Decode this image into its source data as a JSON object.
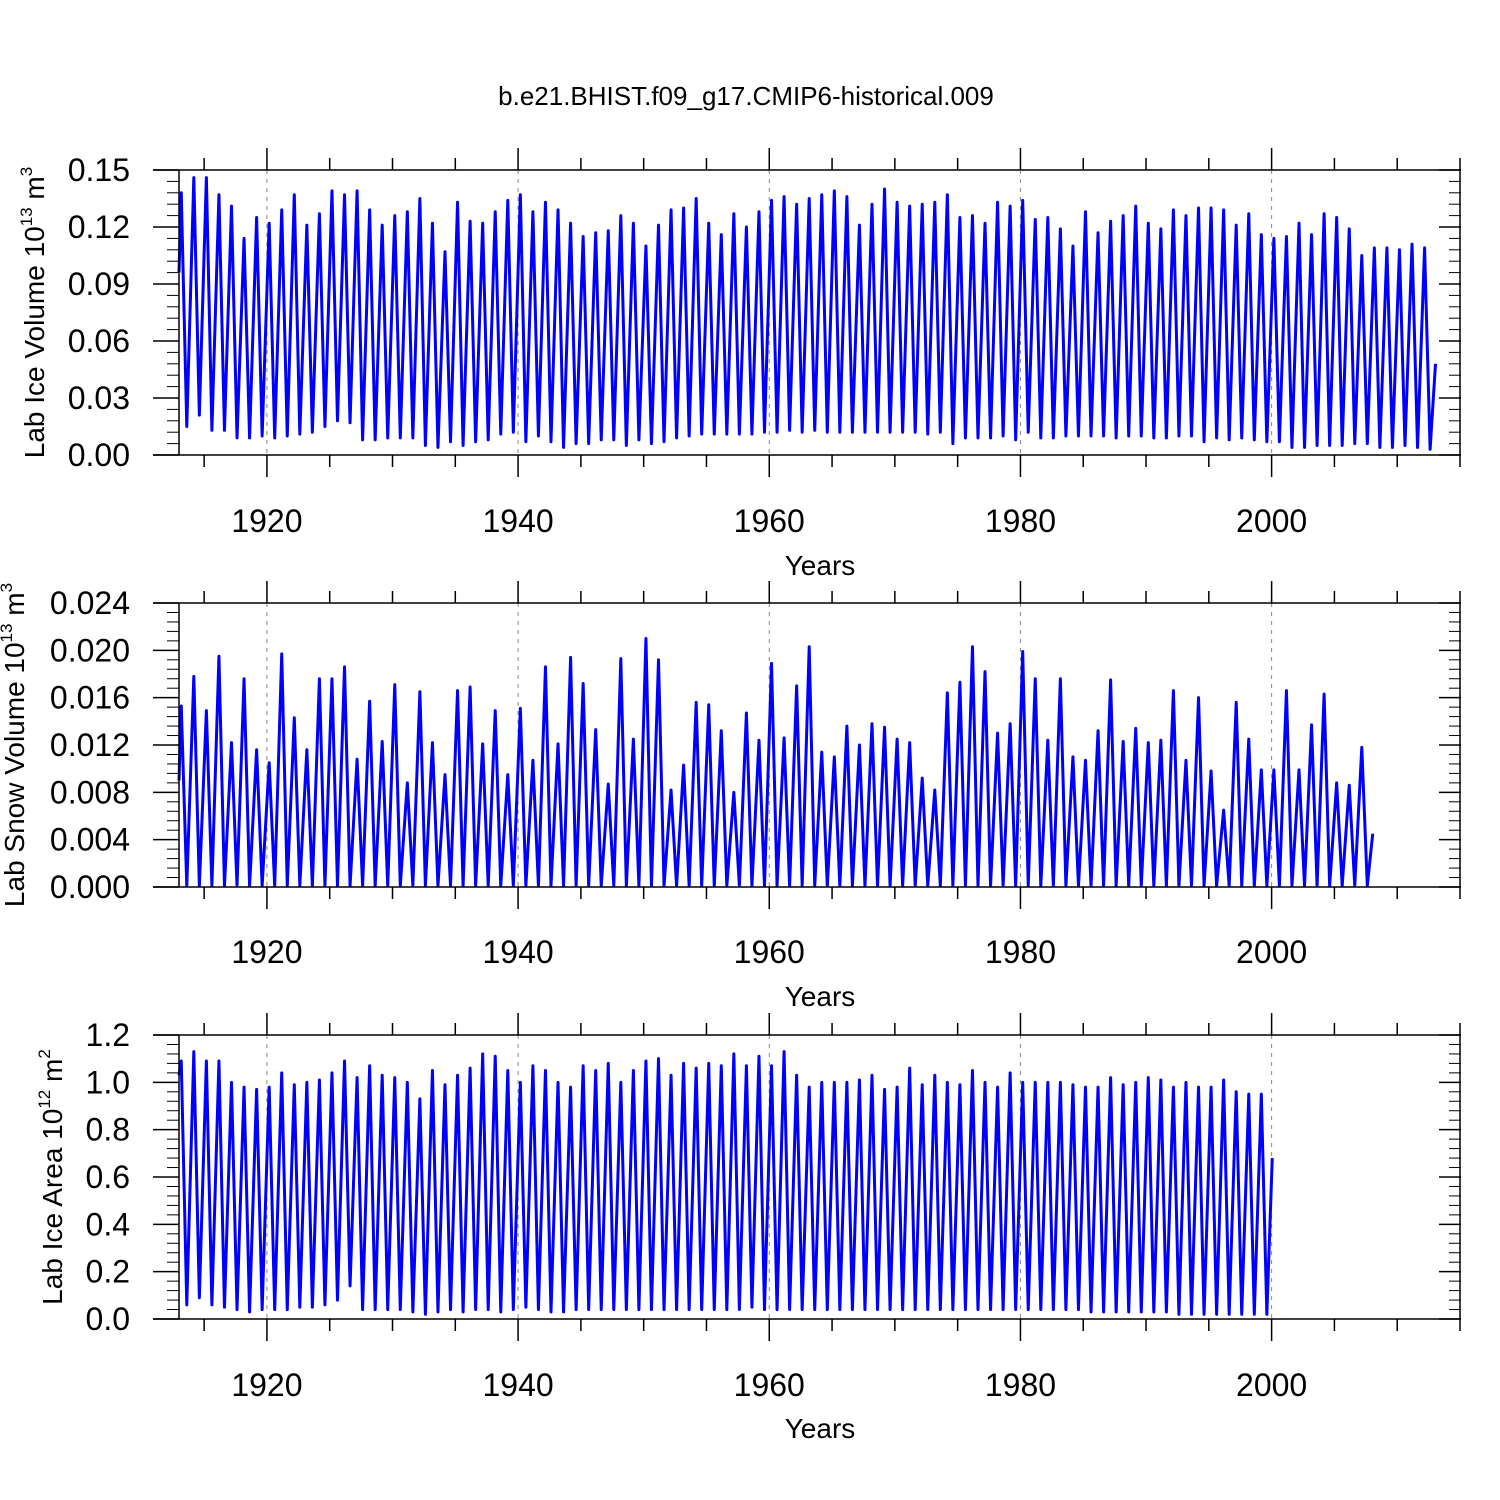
{
  "title": "b.e21.BHIST.f09_g17.CMIP6-historical.009",
  "colors": {
    "series": "#0000ff",
    "axis": "#000000",
    "grid": "#888888"
  },
  "chart_data": [
    {
      "type": "line",
      "ylabel_main": "Lab Ice Volume 10",
      "ylabel_sup": "13",
      "ylabel_tail": " m",
      "ylabel_sup2": "3",
      "xlabel": "Years",
      "xlim": [
        1913.0,
        2015.0
      ],
      "ylim": [
        0.0,
        0.15
      ],
      "yticks": [
        "0.00",
        "0.03",
        "0.06",
        "0.09",
        "0.12",
        "0.15"
      ],
      "xticks": [
        "1920",
        "1940",
        "1960",
        "1980",
        "2000"
      ],
      "series": [
        {
          "name": "Lab Ice Volume",
          "start_year": 1913,
          "start_value": 0.096,
          "end_value": 0.048,
          "annual_max": [
            0.138,
            0.146,
            0.146,
            0.137,
            0.131,
            0.114,
            0.125,
            0.122,
            0.129,
            0.137,
            0.121,
            0.127,
            0.139,
            0.137,
            0.139,
            0.129,
            0.121,
            0.126,
            0.128,
            0.135,
            0.122,
            0.107,
            0.133,
            0.123,
            0.122,
            0.128,
            0.134,
            0.137,
            0.128,
            0.133,
            0.129,
            0.122,
            0.115,
            0.117,
            0.118,
            0.126,
            0.122,
            0.11,
            0.121,
            0.129,
            0.13,
            0.135,
            0.122,
            0.116,
            0.127,
            0.12,
            0.128,
            0.134,
            0.136,
            0.132,
            0.135,
            0.137,
            0.139,
            0.136,
            0.121,
            0.132,
            0.14,
            0.133,
            0.131,
            0.132,
            0.133,
            0.137,
            0.125,
            0.126,
            0.122,
            0.133,
            0.131,
            0.134,
            0.124,
            0.125,
            0.119,
            0.11,
            0.128,
            0.117,
            0.123,
            0.126,
            0.131,
            0.122,
            0.119,
            0.129,
            0.126,
            0.13,
            0.13,
            0.129,
            0.121,
            0.127,
            0.116,
            0.114,
            0.115,
            0.122,
            0.116,
            0.127,
            0.125,
            0.119,
            0.105,
            0.109,
            0.109,
            0.108,
            0.111,
            0.109
          ],
          "annual_min": [
            0.015,
            0.021,
            0.013,
            0.013,
            0.009,
            0.009,
            0.01,
            0.009,
            0.01,
            0.011,
            0.012,
            0.015,
            0.018,
            0.017,
            0.008,
            0.008,
            0.009,
            0.009,
            0.009,
            0.005,
            0.004,
            0.007,
            0.005,
            0.007,
            0.008,
            0.011,
            0.012,
            0.007,
            0.01,
            0.007,
            0.004,
            0.006,
            0.006,
            0.008,
            0.008,
            0.005,
            0.008,
            0.006,
            0.007,
            0.009,
            0.01,
            0.011,
            0.011,
            0.011,
            0.011,
            0.011,
            0.012,
            0.012,
            0.013,
            0.012,
            0.013,
            0.012,
            0.012,
            0.012,
            0.012,
            0.012,
            0.012,
            0.012,
            0.012,
            0.011,
            0.012,
            0.006,
            0.009,
            0.009,
            0.009,
            0.01,
            0.008,
            0.012,
            0.009,
            0.009,
            0.01,
            0.01,
            0.01,
            0.01,
            0.009,
            0.01,
            0.01,
            0.009,
            0.009,
            0.01,
            0.01,
            0.007,
            0.009,
            0.008,
            0.009,
            0.008,
            0.007,
            0.007,
            0.004,
            0.004,
            0.005,
            0.005,
            0.005,
            0.006,
            0.006,
            0.004,
            0.004,
            0.005,
            0.004,
            0.003
          ]
        }
      ]
    },
    {
      "type": "line",
      "ylabel_main": "Lab Snow Volume 10",
      "ylabel_sup": "13",
      "ylabel_tail": " m",
      "ylabel_sup2": "3",
      "xlabel": "Years",
      "xlim": [
        1913.0,
        2015.0
      ],
      "ylim": [
        0.0,
        0.024
      ],
      "yticks": [
        "0.000",
        "0.004",
        "0.008",
        "0.012",
        "0.016",
        "0.020",
        "0.024"
      ],
      "xticks": [
        "1920",
        "1940",
        "1960",
        "1980",
        "2000"
      ],
      "series": [
        {
          "name": "Lab Snow Volume",
          "start_year": 1913,
          "start_value": 0.009,
          "end_value": 0.0045,
          "annual_max": [
            0.0153,
            0.0178,
            0.0149,
            0.0195,
            0.0122,
            0.0176,
            0.0116,
            0.0105,
            0.0197,
            0.0143,
            0.0116,
            0.0176,
            0.0176,
            0.0186,
            0.0108,
            0.0157,
            0.0123,
            0.0171,
            0.0088,
            0.0165,
            0.0122,
            0.0095,
            0.0166,
            0.0169,
            0.0121,
            0.0149,
            0.0095,
            0.0151,
            0.0107,
            0.0186,
            0.0121,
            0.0194,
            0.0172,
            0.0133,
            0.0087,
            0.0193,
            0.0125,
            0.021,
            0.0192,
            0.0082,
            0.0103,
            0.0156,
            0.0154,
            0.0132,
            0.008,
            0.0147,
            0.0124,
            0.0189,
            0.0126,
            0.017,
            0.0203,
            0.0114,
            0.011,
            0.0136,
            0.012,
            0.0138,
            0.0135,
            0.0125,
            0.0122,
            0.0092,
            0.0082,
            0.0164,
            0.0173,
            0.0203,
            0.0182,
            0.013,
            0.0138,
            0.0199,
            0.0176,
            0.0124,
            0.0176,
            0.011,
            0.0107,
            0.0132,
            0.0175,
            0.0123,
            0.0134,
            0.0122,
            0.0124,
            0.0166,
            0.0107,
            0.016,
            0.0098,
            0.0065,
            0.0156,
            0.0125,
            0.0099,
            0.0099,
            0.0166,
            0.0099,
            0.0137,
            0.0163,
            0.0088,
            0.0086,
            0.0118
          ],
          "annual_min": [
            0.0001,
            0.0001,
            0.0001,
            0.0001,
            0.0001,
            0.0001,
            0.0001,
            0.0001,
            0.0001,
            0.0001,
            0.0001,
            0.0001,
            0.0001,
            0.0001,
            0.0001,
            0.0001,
            0.0001,
            0.0001,
            0.0001,
            0.0001,
            0.0001,
            0.0001,
            0.0001,
            0.0001,
            0.0001,
            0.0001,
            0.0001,
            0.0001,
            0.0001,
            0.0001,
            0.0001,
            0.0001,
            0.0001,
            0.0001,
            0.0001,
            0.0001,
            0.0001,
            0.0001,
            0.0001,
            0.0001,
            0.0001,
            0.0001,
            0.0001,
            0.0001,
            0.0001,
            0.0001,
            0.0001,
            0.0001,
            0.0001,
            0.0001,
            0.0001,
            0.0001,
            0.0001,
            0.0001,
            0.0001,
            0.0001,
            0.0001,
            0.0001,
            0.0001,
            0.0001,
            0.0001,
            0.0001,
            0.0001,
            0.0001,
            0.0001,
            0.0001,
            0.0001,
            0.0001,
            0.0001,
            0.0001,
            0.0001,
            0.0001,
            0.0001,
            0.0001,
            0.0001,
            0.0001,
            0.0001,
            0.0001,
            0.0001,
            0.0001,
            0.0001,
            0.0001,
            0.0001,
            0.0001,
            0.0001,
            0.0001,
            0.0001,
            0.0001,
            0.0001,
            0.0001,
            0.0001,
            0.0001,
            0.0001,
            0.0001,
            0.0001
          ]
        }
      ]
    },
    {
      "type": "line",
      "ylabel_main": "Lab Ice Area 10",
      "ylabel_sup": "12",
      "ylabel_tail": " m",
      "ylabel_sup2": "2",
      "xlabel": "Years",
      "xlim": [
        1913.0,
        2015.0
      ],
      "ylim": [
        0.0,
        1.2
      ],
      "yticks": [
        "0.0",
        "0.2",
        "0.4",
        "0.6",
        "0.8",
        "1.0",
        "1.2"
      ],
      "xticks": [
        "1920",
        "1940",
        "1960",
        "1980",
        "2000"
      ],
      "series": [
        {
          "name": "Lab Ice Area",
          "start_year": 1913,
          "start_value": 1.03,
          "end_value": 0.68,
          "annual_max": [
            1.09,
            1.13,
            1.09,
            1.09,
            1.0,
            0.98,
            0.97,
            0.98,
            1.04,
            0.99,
            1.0,
            1.01,
            1.04,
            1.09,
            1.02,
            1.07,
            1.03,
            1.02,
            1.0,
            0.93,
            1.05,
            0.99,
            1.03,
            1.06,
            1.12,
            1.11,
            1.05,
            1.0,
            1.07,
            1.05,
            1.0,
            0.98,
            1.07,
            1.05,
            1.08,
            1.0,
            1.05,
            1.09,
            1.1,
            1.03,
            1.08,
            1.06,
            1.08,
            1.07,
            1.12,
            1.07,
            1.11,
            1.07,
            1.13,
            1.03,
            0.98,
            1.0,
            1.0,
            1.0,
            1.01,
            1.03,
            0.97,
            0.98,
            1.06,
            0.99,
            1.03,
            1.0,
            0.99,
            1.05,
            1.0,
            0.98,
            1.04,
            1.0,
            1.0,
            1.0,
            1.0,
            0.99,
            0.98,
            0.98,
            1.02,
            0.99,
            1.0,
            1.02,
            1.01,
            0.98,
            1.0,
            0.98,
            0.98,
            1.01,
            0.96,
            0.95,
            0.95
          ],
          "annual_min": [
            0.06,
            0.09,
            0.06,
            0.05,
            0.04,
            0.03,
            0.04,
            0.04,
            0.04,
            0.05,
            0.05,
            0.06,
            0.08,
            0.14,
            0.04,
            0.04,
            0.04,
            0.04,
            0.03,
            0.02,
            0.03,
            0.04,
            0.03,
            0.04,
            0.04,
            0.03,
            0.04,
            0.05,
            0.04,
            0.03,
            0.03,
            0.04,
            0.04,
            0.04,
            0.04,
            0.04,
            0.04,
            0.04,
            0.04,
            0.04,
            0.04,
            0.04,
            0.04,
            0.04,
            0.04,
            0.05,
            0.04,
            0.04,
            0.04,
            0.04,
            0.04,
            0.04,
            0.04,
            0.04,
            0.04,
            0.04,
            0.04,
            0.04,
            0.04,
            0.04,
            0.04,
            0.04,
            0.04,
            0.04,
            0.04,
            0.04,
            0.04,
            0.04,
            0.04,
            0.04,
            0.04,
            0.04,
            0.03,
            0.03,
            0.03,
            0.03,
            0.03,
            0.03,
            0.03,
            0.02,
            0.02,
            0.02,
            0.02,
            0.02,
            0.02,
            0.02,
            0.02
          ]
        }
      ]
    }
  ]
}
